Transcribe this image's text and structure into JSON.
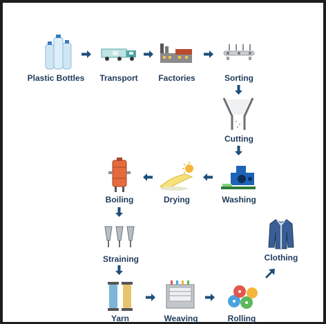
{
  "colors": {
    "arrow": "#1d4e7a",
    "label": "#1f3a5a",
    "background": "#ffffff",
    "frame": "#1e1e1e"
  },
  "stages": {
    "plastic_bottles": {
      "label": "Plastic Bottles",
      "icon": "bottles-icon"
    },
    "transport": {
      "label": "Transport",
      "icon": "truck-icon"
    },
    "factories": {
      "label": "Factories",
      "icon": "factory-icon"
    },
    "sorting": {
      "label": "Sorting",
      "icon": "conveyor-icon"
    },
    "cutting": {
      "label": "Cutting",
      "icon": "hopper-icon"
    },
    "washing": {
      "label": "Washing",
      "icon": "washing-machine-icon"
    },
    "drying": {
      "label": "Drying",
      "icon": "sun-icon"
    },
    "boiling": {
      "label": "Boiling",
      "icon": "boiler-icon"
    },
    "straining": {
      "label": "Straining",
      "icon": "strainer-icon"
    },
    "yarn": {
      "label": "Yarn",
      "icon": "spool-icon"
    },
    "weaving": {
      "label": "Weaving",
      "icon": "loom-icon"
    },
    "rolling": {
      "label": "Rolling",
      "icon": "fabric-rolls-icon"
    },
    "clothing": {
      "label": "Clothing",
      "icon": "jacket-icon"
    }
  }
}
